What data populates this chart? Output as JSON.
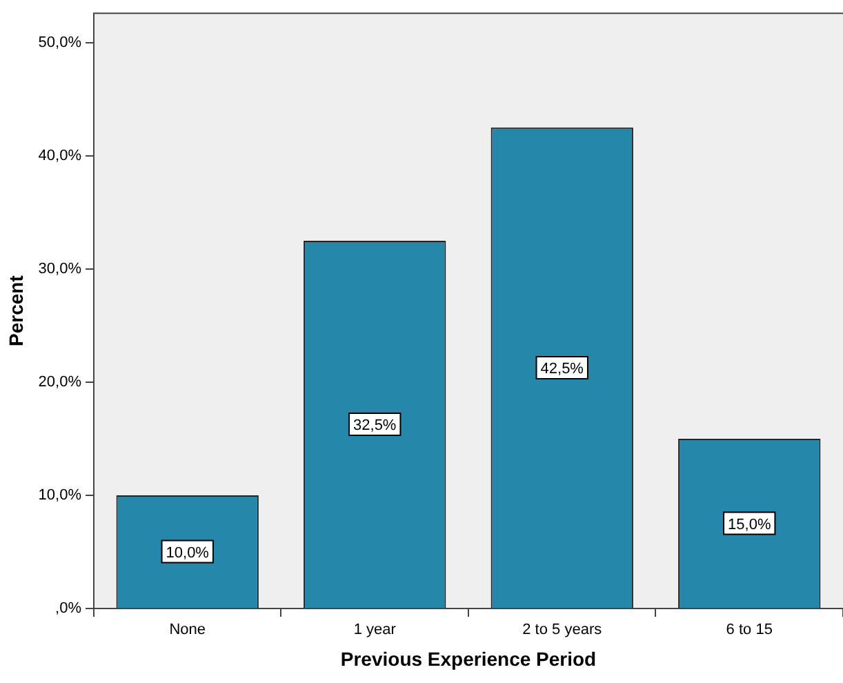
{
  "chart_data": {
    "type": "bar",
    "xlabel": "Previous Experience Period",
    "ylabel": "Percent",
    "categories": [
      "None",
      "1 year",
      "2 to 5 years",
      "6 to 15"
    ],
    "values": [
      10.0,
      32.5,
      42.5,
      15.0
    ],
    "value_labels": [
      "10,0%",
      "32,5%",
      "42,5%",
      "15,0%"
    ],
    "color": "#2587a9",
    "ylim": [
      0,
      52.6
    ],
    "yticks": [
      {
        "value": 0,
        "label": ",0%"
      },
      {
        "value": 10,
        "label": "10,0%"
      },
      {
        "value": 20,
        "label": "20,0%"
      },
      {
        "value": 30,
        "label": "30,0%"
      },
      {
        "value": 40,
        "label": "40,0%"
      },
      {
        "value": 50,
        "label": "50,0%"
      }
    ],
    "grid": false,
    "legend": false
  }
}
